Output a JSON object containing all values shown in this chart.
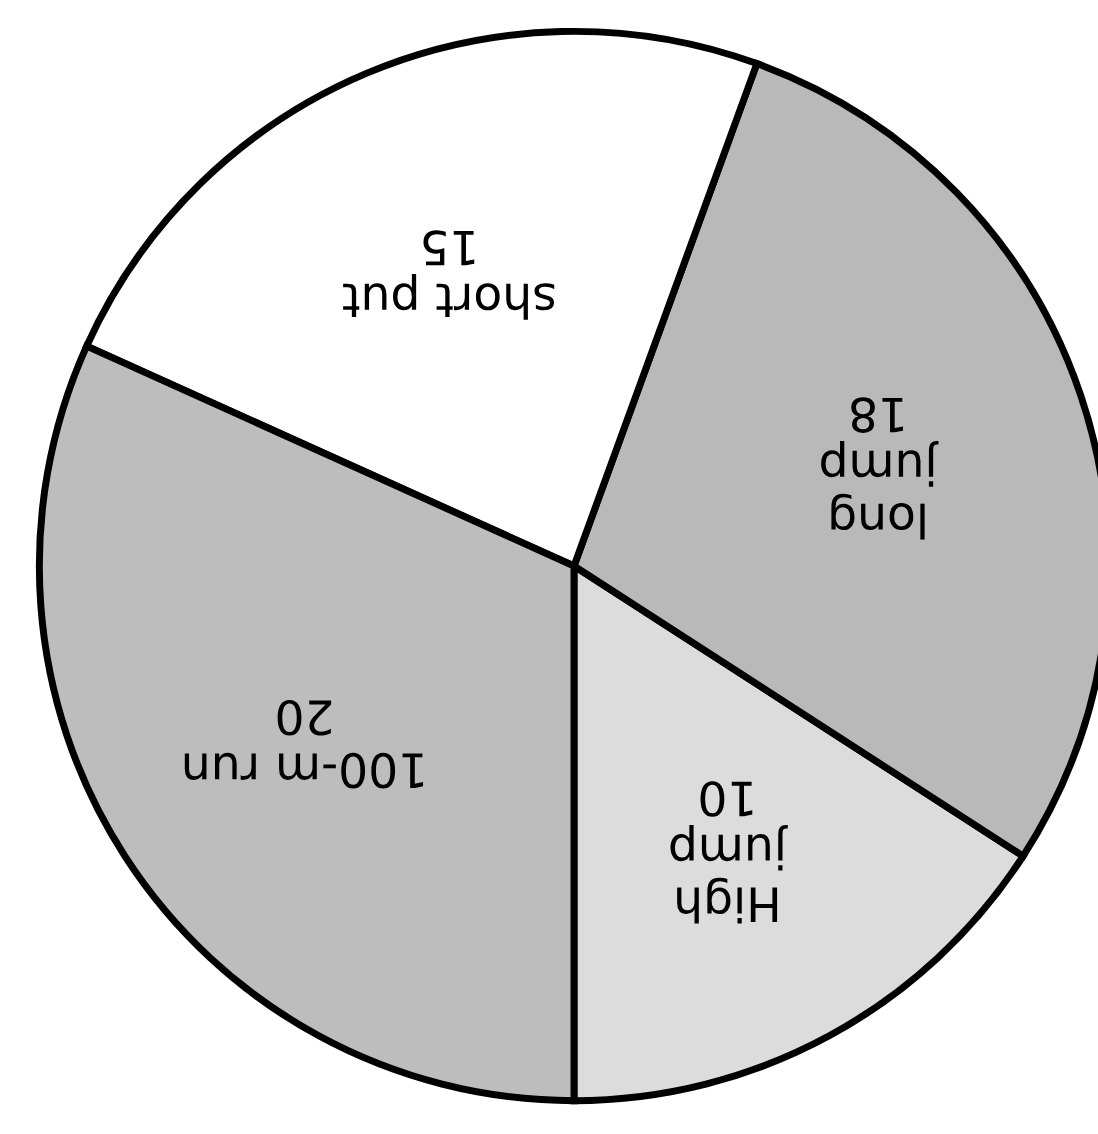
{
  "chart_data": {
    "type": "pie",
    "categories": [
      "High jump",
      "long jump",
      "short put",
      "100-m run"
    ],
    "values": [
      10,
      18,
      15,
      20
    ],
    "colors": [
      "#dcdcdc",
      "#b9b9b9",
      "#ffffff",
      "#bdbdbd"
    ],
    "data_labels": true
  }
}
